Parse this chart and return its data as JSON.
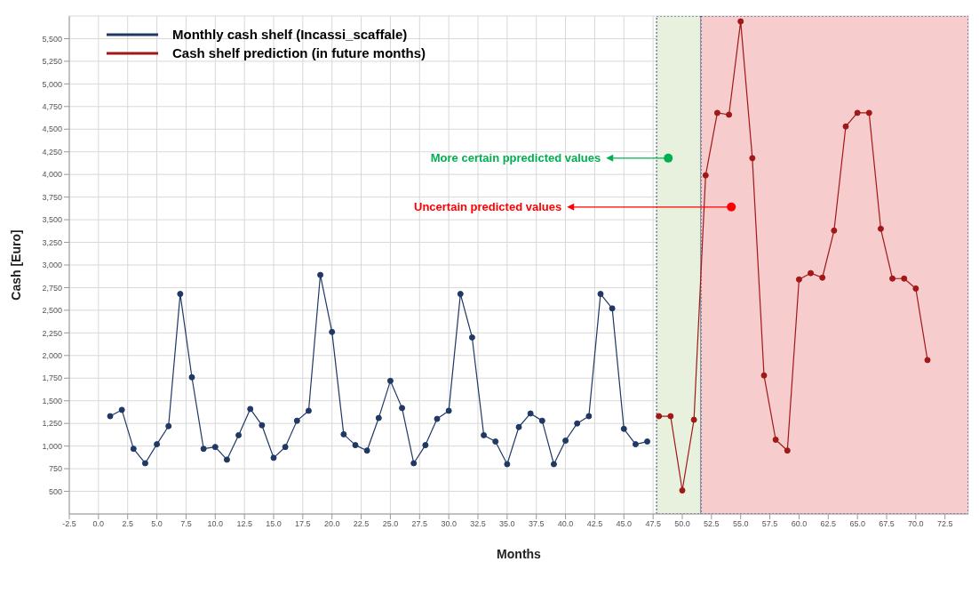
{
  "chart_data": {
    "type": "line",
    "xlabel": "Months",
    "ylabel": "Cash [Euro]",
    "xlim": [
      -2.5,
      74.5
    ],
    "ylim": [
      250,
      5750
    ],
    "xticks": [
      {
        "value": -2.5,
        "label": "-2.5"
      },
      {
        "value": 0,
        "label": "0.0"
      },
      {
        "value": 2.5,
        "label": "2.5"
      },
      {
        "value": 5,
        "label": "5.0"
      },
      {
        "value": 7.5,
        "label": "7.5"
      },
      {
        "value": 10,
        "label": "10.0"
      },
      {
        "value": 12.5,
        "label": "12.5"
      },
      {
        "value": 15,
        "label": "15.0"
      },
      {
        "value": 17.5,
        "label": "17.5"
      },
      {
        "value": 20,
        "label": "20.0"
      },
      {
        "value": 22.5,
        "label": "22.5"
      },
      {
        "value": 25,
        "label": "25.0"
      },
      {
        "value": 27.5,
        "label": "27.5"
      },
      {
        "value": 30,
        "label": "30.0"
      },
      {
        "value": 32.5,
        "label": "32.5"
      },
      {
        "value": 35,
        "label": "35.0"
      },
      {
        "value": 37.5,
        "label": "37.5"
      },
      {
        "value": 40,
        "label": "40.0"
      },
      {
        "value": 42.5,
        "label": "42.5"
      },
      {
        "value": 45,
        "label": "45.0"
      },
      {
        "value": 47.5,
        "label": "47.5"
      },
      {
        "value": 50,
        "label": "50.0"
      },
      {
        "value": 52.5,
        "label": "52.5"
      },
      {
        "value": 55,
        "label": "55.0"
      },
      {
        "value": 57.5,
        "label": "57.5"
      },
      {
        "value": 60,
        "label": "60.0"
      },
      {
        "value": 62.5,
        "label": "62.5"
      },
      {
        "value": 65,
        "label": "65.0"
      },
      {
        "value": 67.5,
        "label": "67.5"
      },
      {
        "value": 70,
        "label": "70.0"
      },
      {
        "value": 72.5,
        "label": "72.5"
      }
    ],
    "yticks": [
      {
        "value": 500,
        "label": "500"
      },
      {
        "value": 750,
        "label": "750"
      },
      {
        "value": 1000,
        "label": "1,000"
      },
      {
        "value": 1250,
        "label": "1,250"
      },
      {
        "value": 1500,
        "label": "1,500"
      },
      {
        "value": 1750,
        "label": "1,750"
      },
      {
        "value": 2000,
        "label": "2,000"
      },
      {
        "value": 2250,
        "label": "2,250"
      },
      {
        "value": 2500,
        "label": "2,500"
      },
      {
        "value": 2750,
        "label": "2,750"
      },
      {
        "value": 3000,
        "label": "3,000"
      },
      {
        "value": 3250,
        "label": "3,250"
      },
      {
        "value": 3500,
        "label": "3,500"
      },
      {
        "value": 3750,
        "label": "3,750"
      },
      {
        "value": 4000,
        "label": "4,000"
      },
      {
        "value": 4250,
        "label": "4,250"
      },
      {
        "value": 4500,
        "label": "4,500"
      },
      {
        "value": 4750,
        "label": "4,750"
      },
      {
        "value": 5000,
        "label": "5,000"
      },
      {
        "value": 5250,
        "label": "5,250"
      },
      {
        "value": 5500,
        "label": "5,500"
      }
    ],
    "grid": true,
    "legend": "top left",
    "marker": "circle",
    "line_style": "solid",
    "series": [
      {
        "name": "Monthly cash shelf (Incassi_scaffale)",
        "color": "#1f3864",
        "x": [
          1,
          2,
          3,
          4,
          5,
          6,
          7,
          8,
          9,
          10,
          11,
          12,
          13,
          14,
          15,
          16,
          17,
          18,
          19,
          20,
          21,
          22,
          23,
          24,
          25,
          26,
          27,
          28,
          29,
          30,
          31,
          32,
          33,
          34,
          35,
          36,
          37,
          38,
          39,
          40,
          41,
          42,
          43,
          44,
          45,
          46,
          47
        ],
        "values": [
          1330,
          1400,
          970,
          810,
          1020,
          1220,
          2680,
          1760,
          970,
          990,
          850,
          1120,
          1410,
          1230,
          870,
          990,
          1280,
          1390,
          2890,
          2260,
          1130,
          1010,
          950,
          1310,
          1720,
          1420,
          810,
          1010,
          1300,
          1390,
          2680,
          2200,
          1120,
          1050,
          800,
          1210,
          1360,
          1280,
          800,
          1060,
          1250,
          1330,
          2680,
          2520,
          1190,
          1020,
          1050
        ]
      },
      {
        "name": "Cash shelf prediction (in future months)",
        "color": "#a01818",
        "x": [
          48,
          49,
          50,
          51,
          52,
          53,
          54,
          55,
          56,
          57,
          58,
          59,
          60,
          61,
          62,
          63,
          64,
          65,
          66,
          67,
          68,
          69,
          70,
          71
        ],
        "values": [
          1330,
          1330,
          510,
          1290,
          3990,
          4680,
          4660,
          5690,
          4180,
          1780,
          1070,
          950,
          2840,
          2910,
          2860,
          3380,
          4530,
          4680,
          4680,
          3400,
          2850,
          2850,
          2740,
          1950
        ]
      }
    ],
    "bands": [
      {
        "axis": "x",
        "from": 47.8,
        "to": 51.6,
        "color": "#e8f1de"
      },
      {
        "axis": "x",
        "from": 51.6,
        "to": 74.5,
        "color": "#f6cccc"
      }
    ],
    "annotations": [
      {
        "text": "More certain ppredicted values",
        "x": 48.8,
        "y": 4180
      },
      {
        "text": "Uncertain predicted values",
        "x": 54.2,
        "y": 3640
      }
    ]
  }
}
